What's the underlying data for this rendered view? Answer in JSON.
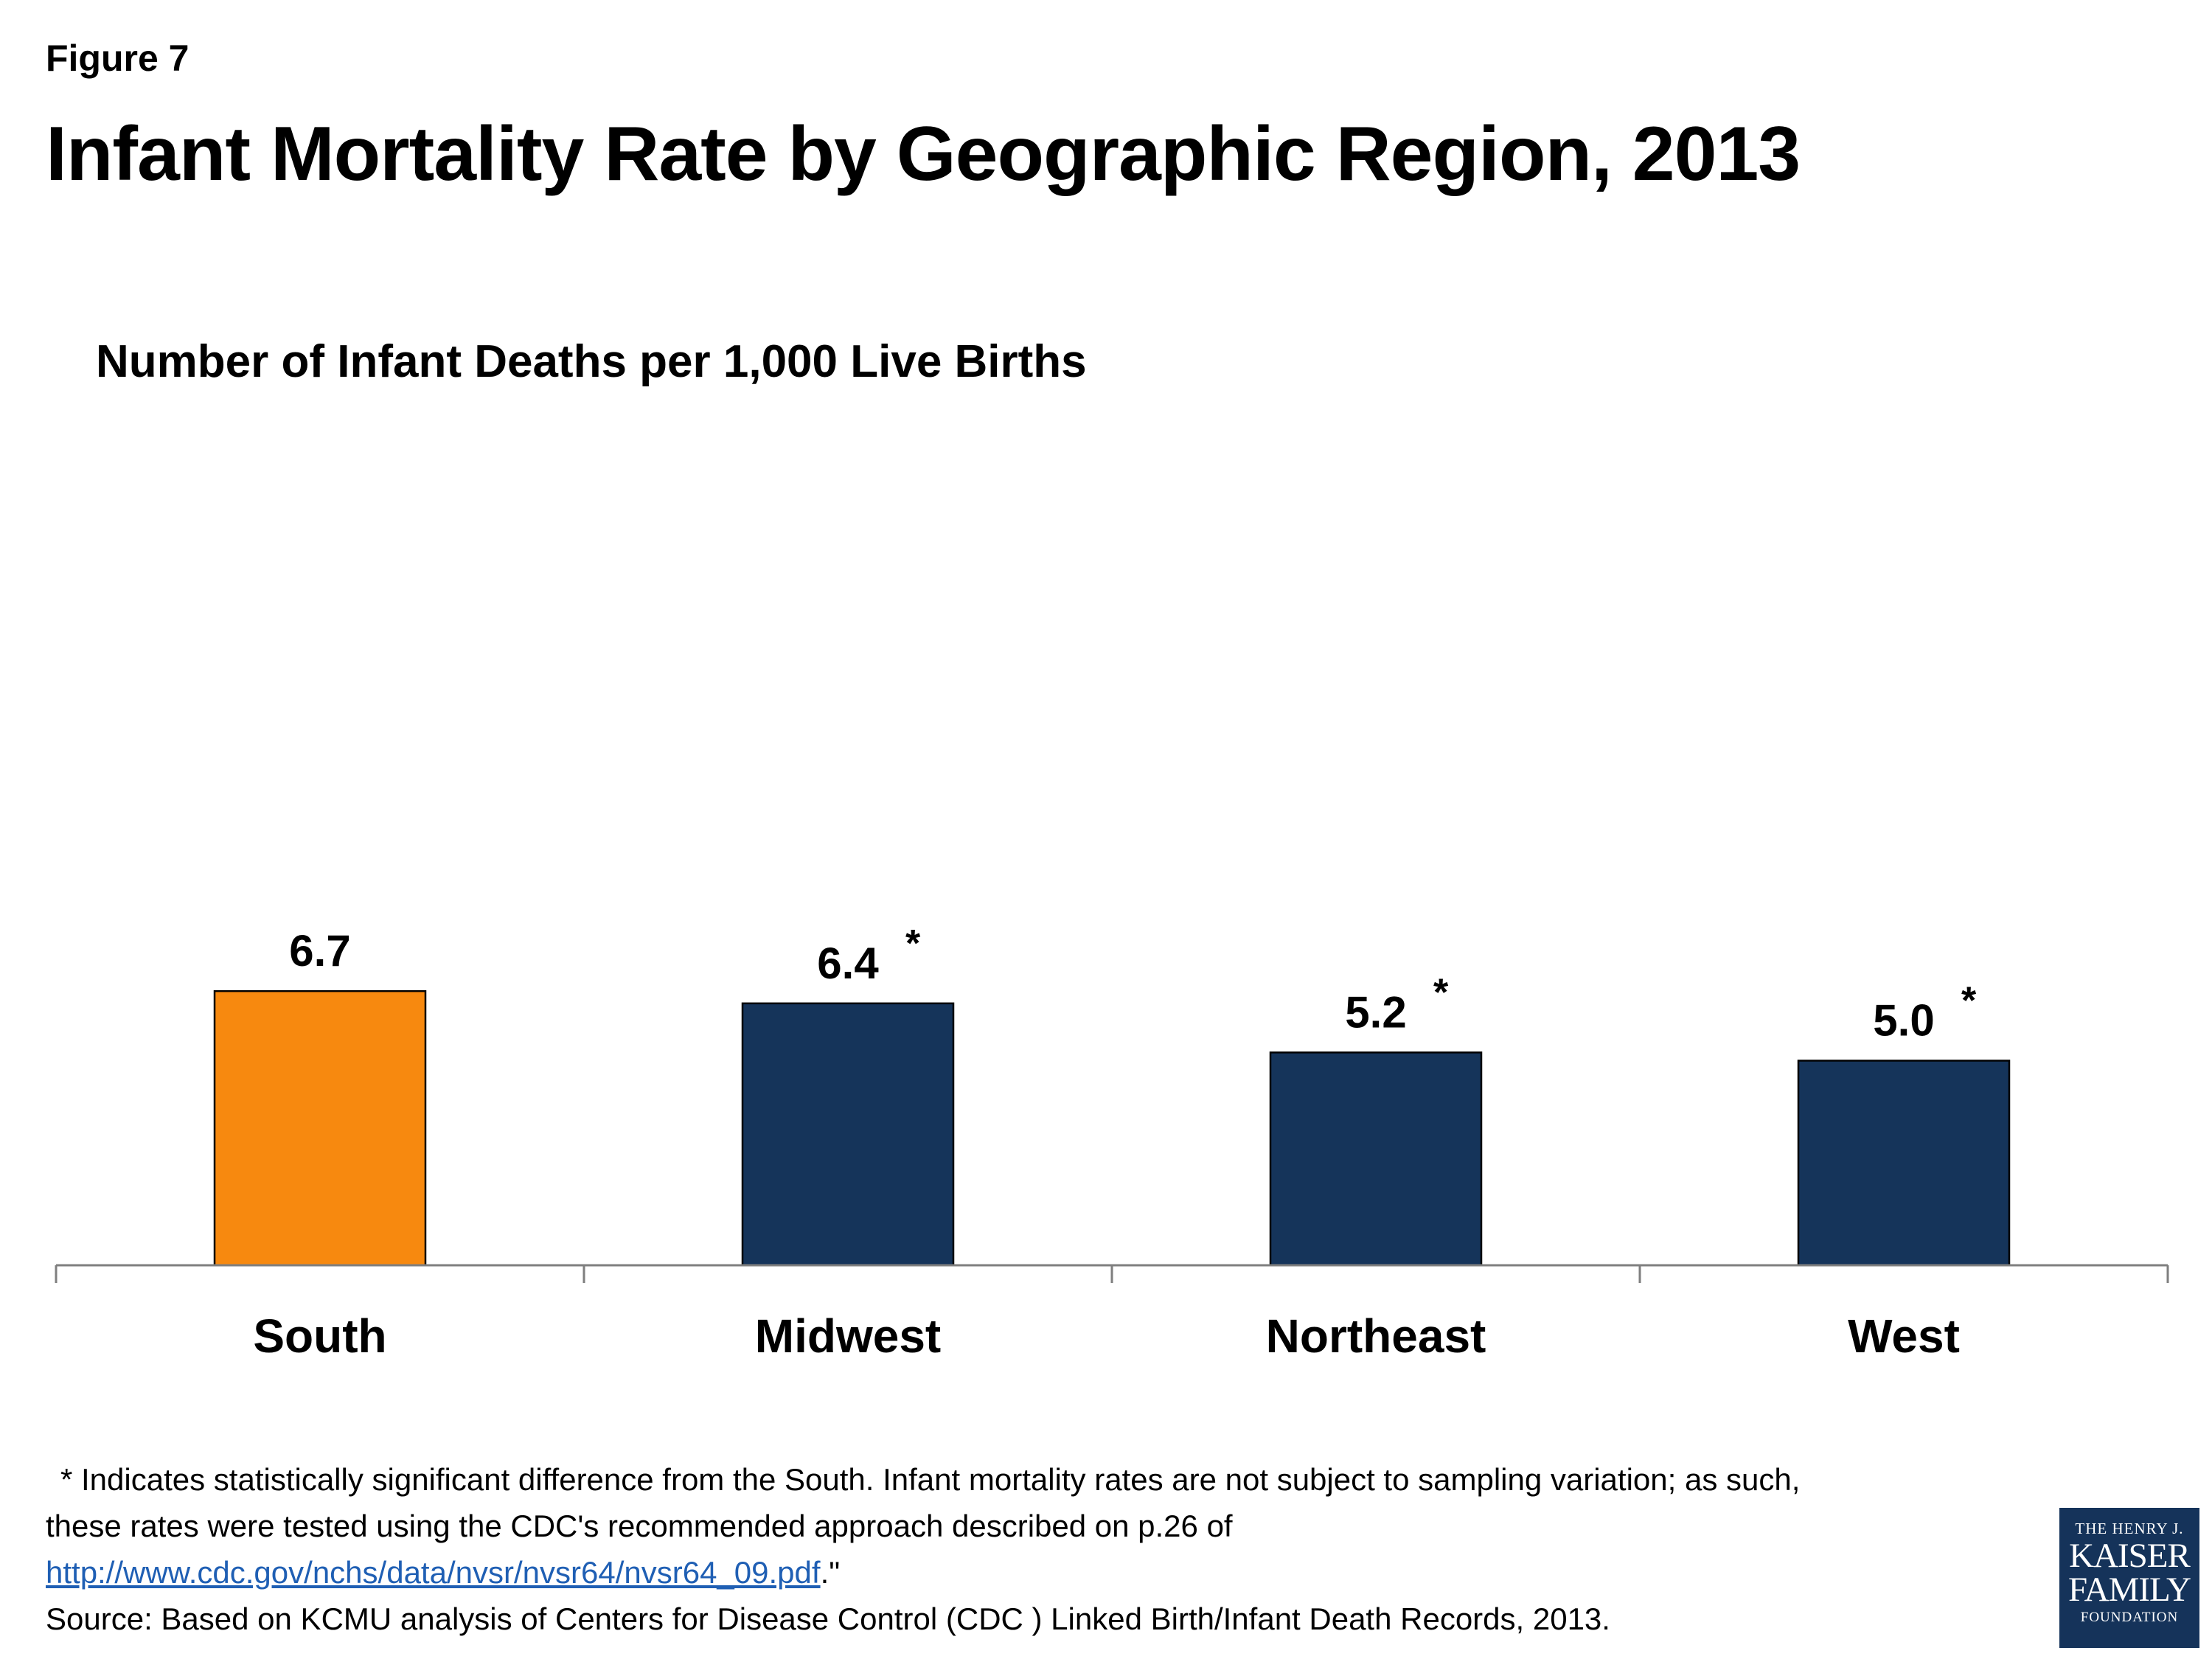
{
  "figure_label": "Figure 7",
  "title": "Infant Mortality Rate by Geographic Region, 2013",
  "subtitle": "Number of Infant Deaths per 1,000 Live Births",
  "chart_data": {
    "type": "bar",
    "title": "Infant Mortality Rate by Geographic Region, 2013",
    "ylabel": "Number of Infant Deaths per 1,000 Live Births",
    "xlabel": "",
    "categories": [
      "South",
      "Midwest",
      "Northeast",
      "West"
    ],
    "values": [
      6.7,
      6.4,
      5.2,
      5.0
    ],
    "value_labels": [
      "6.7",
      "6.4",
      "5.2",
      "5.0"
    ],
    "significance_markers": [
      "",
      "*",
      "*",
      "*"
    ],
    "bar_colors": [
      "#f7890f",
      "#15345a",
      "#15345a",
      "#15345a"
    ],
    "ylim": [
      0,
      20
    ],
    "grid": false,
    "legend": "none"
  },
  "footnote": {
    "line1": "* Indicates statistically significant difference from the South. Infant mortality rates are not subject to sampling variation; as such,",
    "line2": "these rates were tested using the CDC's recommended approach described on p.26 of",
    "link_text": "http://www.cdc.gov/nchs/data/nvsr/nvsr64/nvsr64_09.pdf",
    "link_suffix": ".\"",
    "source": "Source: Based on KCMU analysis of Centers for Disease Control (CDC ) Linked Birth/Infant Death Records, 2013."
  },
  "logo": {
    "line1": "THE HENRY J.",
    "line2": "KAISER",
    "line3": "FAMILY",
    "line4": "FOUNDATION",
    "color": "#15335a"
  },
  "colors": {
    "axis": "#7f7f7f",
    "bar_outline": "#000000"
  }
}
